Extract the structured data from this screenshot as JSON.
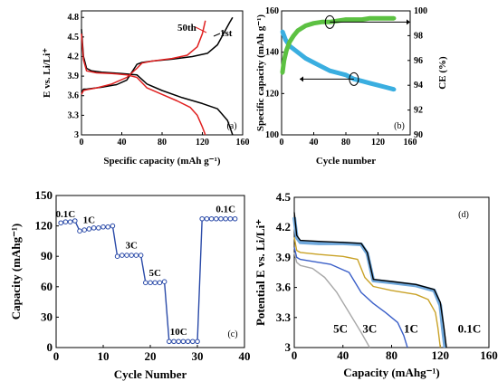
{
  "chart_data": [
    {
      "id": "a",
      "type": "line",
      "panel_label": "(a)",
      "xlabel": "Specific capacity (mAh g⁻¹)",
      "ylabel": "E vs. Li/Li⁺",
      "xlim": [
        0,
        160
      ],
      "ylim": [
        3.0,
        4.9
      ],
      "xticks": [
        0,
        40,
        80,
        120,
        160
      ],
      "yticks": [
        3.0,
        3.3,
        3.6,
        3.9,
        4.2,
        4.5,
        4.8
      ],
      "ytick_labels": [
        "3",
        "3.3",
        "3.6",
        "3.9",
        "4.2",
        "4.5",
        "4.8"
      ],
      "series": [
        {
          "name": "1st",
          "color": "#000000",
          "charge": {
            "x": [
              0,
              2,
              5,
              10,
              20,
              35,
              45,
              50,
              55,
              60,
              70,
              90,
              110,
              125,
              135,
              142,
              147,
              150
            ],
            "y": [
              3.65,
              3.7,
              3.7,
              3.71,
              3.73,
              3.77,
              3.84,
              3.96,
              4.08,
              4.11,
              4.13,
              4.16,
              4.2,
              4.25,
              4.38,
              4.58,
              4.72,
              4.8
            ]
          },
          "discharge": {
            "x": [
              0,
              2,
              5,
              10,
              20,
              40,
              55,
              65,
              80,
              100,
              120,
              135,
              145,
              150
            ],
            "y": [
              4.62,
              4.2,
              4.02,
              3.98,
              3.96,
              3.94,
              3.92,
              3.78,
              3.68,
              3.57,
              3.48,
              3.4,
              3.22,
              3.0
            ]
          }
        },
        {
          "name": "50th",
          "color": "#e02020",
          "charge": {
            "x": [
              0,
              2,
              5,
              15,
              30,
              45,
              55,
              60,
              70,
              90,
              105,
              115,
              120,
              123
            ],
            "y": [
              3.62,
              3.68,
              3.69,
              3.72,
              3.78,
              3.88,
              4.02,
              4.1,
              4.13,
              4.17,
              4.22,
              4.35,
              4.55,
              4.75
            ]
          },
          "discharge": {
            "x": [
              0,
              2,
              5,
              15,
              30,
              45,
              55,
              65,
              80,
              95,
              108,
              115,
              120,
              123
            ],
            "y": [
              4.55,
              4.15,
              3.98,
              3.95,
              3.94,
              3.92,
              3.88,
              3.72,
              3.62,
              3.52,
              3.42,
              3.3,
              3.12,
              3.0
            ]
          }
        }
      ],
      "annotations": [
        {
          "text": "50th",
          "color": "#e02020"
        },
        {
          "text": "1st",
          "color": "#000000"
        }
      ]
    },
    {
      "id": "b",
      "type": "scatter",
      "panel_label": "(b)",
      "xlabel": "Cycle number",
      "ylabel": "Specific capacity (mAh g⁻¹)",
      "y2label": "CE (%)",
      "xlim": [
        0,
        160
      ],
      "ylim": [
        100,
        160
      ],
      "y2lim": [
        90,
        100
      ],
      "xticks": [
        0,
        40,
        80,
        120,
        160
      ],
      "yticks": [
        100,
        120,
        140,
        160
      ],
      "y2ticks": [
        90,
        92,
        94,
        96,
        98,
        100
      ],
      "series": [
        {
          "name": "capacity",
          "color": "#3aaee0",
          "x": [
            1,
            5,
            10,
            20,
            30,
            40,
            50,
            60,
            70,
            80,
            90,
            100,
            110,
            120,
            130,
            140
          ],
          "y": [
            150,
            146,
            143,
            140,
            137,
            135,
            133,
            131,
            130,
            129,
            127,
            126,
            125,
            124,
            123,
            122
          ]
        },
        {
          "name": "CE",
          "color": "#5cc142",
          "x": [
            1,
            3,
            6,
            10,
            15,
            20,
            30,
            40,
            50,
            60,
            70,
            80,
            90,
            100,
            110,
            120,
            130,
            140
          ],
          "y": [
            95.0,
            96.0,
            96.8,
            97.5,
            98.0,
            98.4,
            98.8,
            99.0,
            99.1,
            99.1,
            99.2,
            99.3,
            99.3,
            99.3,
            99.4,
            99.4,
            99.4,
            99.4
          ]
        }
      ]
    },
    {
      "id": "c",
      "type": "line",
      "panel_label": "(c)",
      "xlabel": "Cycle Number",
      "ylabel": "Capacity (mAhg⁻¹)",
      "xlim": [
        0,
        40
      ],
      "ylim": [
        0,
        150
      ],
      "xticks": [
        0,
        10,
        20,
        30,
        40
      ],
      "yticks": [
        0,
        30,
        60,
        90,
        120,
        150
      ],
      "series": [
        {
          "name": "capacity",
          "color": "#2a4aa8",
          "x": [
            1,
            2,
            3,
            4,
            5,
            6,
            7,
            8,
            9,
            10,
            11,
            12,
            13,
            14,
            15,
            16,
            17,
            18,
            19,
            20,
            21,
            22,
            23,
            24,
            25,
            26,
            27,
            28,
            29,
            30,
            31,
            32,
            33,
            34,
            35,
            36,
            37,
            38
          ],
          "y": [
            123,
            124,
            124,
            125,
            115,
            116,
            117,
            118,
            118,
            119,
            119,
            120,
            90,
            91,
            91,
            91,
            91,
            91,
            64,
            64,
            64,
            64,
            65,
            6,
            6,
            6,
            6,
            6,
            6,
            6,
            127,
            127,
            127,
            127,
            127,
            127,
            127,
            127
          ]
        }
      ],
      "rate_labels": [
        "0.1C",
        "1C",
        "3C",
        "5C",
        "10C",
        "0.1C"
      ]
    },
    {
      "id": "d",
      "type": "line",
      "panel_label": "(d)",
      "xlabel": "Capacity (mAhg⁻¹)",
      "ylabel": "Potential E vs. Li/Li⁺",
      "xlim": [
        0,
        160
      ],
      "ylim": [
        3.0,
        4.5
      ],
      "xticks": [
        0,
        40,
        80,
        120,
        160
      ],
      "yticks": [
        3.0,
        3.3,
        3.6,
        3.9,
        4.2,
        4.5
      ],
      "ytick_labels": [
        "3",
        "3.3",
        "3.6",
        "3.9",
        "4.2",
        "4.5"
      ],
      "series": [
        {
          "name": "0.1C",
          "color": "#000000",
          "x": [
            0,
            2,
            5,
            20,
            40,
            55,
            60,
            65,
            80,
            100,
            115,
            120,
            123,
            125
          ],
          "y": [
            4.35,
            4.12,
            4.07,
            4.06,
            4.05,
            4.04,
            3.95,
            3.68,
            3.66,
            3.63,
            3.58,
            3.45,
            3.2,
            3.0
          ]
        },
        {
          "name": "0.1C",
          "color": "#6fa8dc",
          "x": [
            0,
            2,
            5,
            20,
            40,
            55,
            60,
            65,
            80,
            100,
            115,
            120,
            122,
            124
          ],
          "y": [
            4.3,
            4.1,
            4.05,
            4.04,
            4.04,
            4.03,
            3.94,
            3.67,
            3.65,
            3.62,
            3.57,
            3.42,
            3.2,
            3.0
          ]
        },
        {
          "name": "1C",
          "color": "#c9a227",
          "x": [
            0,
            2,
            5,
            20,
            40,
            52,
            58,
            65,
            80,
            100,
            110,
            116,
            118,
            120
          ],
          "y": [
            4.1,
            3.97,
            3.95,
            3.93,
            3.91,
            3.88,
            3.7,
            3.61,
            3.57,
            3.53,
            3.48,
            3.35,
            3.2,
            3.0
          ]
        },
        {
          "name": "3C",
          "color": "#3a5fc8",
          "x": [
            0,
            2,
            5,
            15,
            30,
            45,
            55,
            65,
            75,
            85,
            90,
            93
          ],
          "y": [
            4.0,
            3.9,
            3.88,
            3.86,
            3.83,
            3.75,
            3.55,
            3.44,
            3.35,
            3.25,
            3.12,
            3.0
          ]
        },
        {
          "name": "5C",
          "color": "#a8a8a8",
          "x": [
            0,
            2,
            5,
            15,
            25,
            35,
            45,
            55,
            62
          ],
          "y": [
            3.95,
            3.85,
            3.82,
            3.79,
            3.7,
            3.55,
            3.35,
            3.15,
            3.0
          ]
        }
      ],
      "curve_labels": [
        "5C",
        "3C",
        "1C",
        "0.1C"
      ]
    }
  ]
}
